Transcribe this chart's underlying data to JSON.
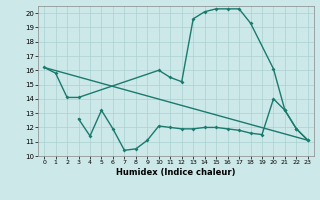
{
  "title": "",
  "xlabel": "Humidex (Indice chaleur)",
  "bg_color": "#cce8e8",
  "line_color": "#1a7a6e",
  "grid_color": "#aad0d0",
  "xlim": [
    -0.5,
    23.5
  ],
  "ylim": [
    10,
    20.5
  ],
  "yticks": [
    10,
    11,
    12,
    13,
    14,
    15,
    16,
    17,
    18,
    19,
    20
  ],
  "xticks": [
    0,
    1,
    2,
    3,
    4,
    5,
    6,
    7,
    8,
    9,
    10,
    11,
    12,
    13,
    14,
    15,
    16,
    17,
    18,
    19,
    20,
    21,
    22,
    23
  ],
  "curve1_x": [
    0,
    1,
    2,
    3,
    10,
    11,
    12,
    13,
    14,
    15,
    16,
    17,
    18,
    20,
    21,
    22,
    23
  ],
  "curve1_y": [
    16.2,
    15.8,
    14.1,
    14.1,
    16.0,
    15.5,
    15.2,
    19.6,
    20.1,
    20.3,
    20.3,
    20.3,
    19.3,
    16.1,
    13.2,
    11.9,
    11.1
  ],
  "curve2_x": [
    0,
    23
  ],
  "curve2_y": [
    16.2,
    11.1
  ],
  "curve3_x": [
    3,
    4,
    5,
    6,
    7,
    8,
    9,
    10,
    11,
    12,
    13,
    14,
    15,
    16,
    17,
    18,
    19,
    20,
    21,
    22,
    23
  ],
  "curve3_y": [
    12.6,
    11.4,
    13.2,
    11.9,
    10.4,
    10.5,
    11.1,
    12.1,
    12.0,
    11.9,
    11.9,
    12.0,
    12.0,
    11.9,
    11.8,
    11.6,
    11.5,
    14.0,
    13.2,
    11.9,
    11.1
  ]
}
